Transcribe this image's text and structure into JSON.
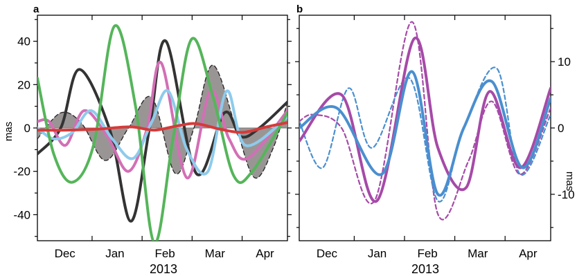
{
  "chart_data": [
    {
      "panel_label": "a",
      "type": "line",
      "ylabel": "mas",
      "xlabel": "2013",
      "ylim": [
        -52,
        52
      ],
      "xlim": [
        0,
        5.35
      ],
      "month_ticks": [
        "Dec",
        "Jan",
        "Feb",
        "Mar",
        "Apr"
      ],
      "yticks": [
        -40,
        -20,
        0,
        20,
        40
      ],
      "grid": false,
      "series": [
        {
          "color": "#333333",
          "style": "solid",
          "x": [
            0,
            0.5,
            0.9,
            1.55,
            2.0,
            2.4,
            2.75,
            3.4,
            4.0,
            4.35,
            4.75,
            5.35
          ],
          "values": [
            -12,
            0,
            27,
            -1,
            -43,
            0,
            40,
            -21,
            7,
            -4,
            0,
            12
          ]
        },
        {
          "color": "#d36fb5",
          "style": "solid",
          "x": [
            0,
            0.25,
            0.6,
            1.0,
            1.5,
            1.95,
            2.35,
            2.65,
            3.2,
            3.7,
            4.1,
            4.5,
            5.35
          ],
          "values": [
            3,
            3,
            -8,
            8,
            -4,
            -20,
            0,
            30,
            -23,
            17,
            -5,
            -14,
            8
          ]
        },
        {
          "color": "#8ecbec",
          "style": "solid",
          "x": [
            0,
            0.35,
            0.75,
            1.15,
            1.6,
            2.05,
            2.45,
            2.8,
            3.2,
            3.65,
            4.05,
            4.45,
            5.35
          ],
          "values": [
            0,
            -5,
            -2,
            8,
            -5,
            -14,
            3,
            17,
            -10,
            -20,
            17,
            -8,
            5
          ]
        },
        {
          "color": "#55b55a",
          "style": "solid",
          "x": [
            0,
            0.35,
            0.75,
            1.2,
            1.65,
            2.1,
            2.5,
            2.9,
            3.3,
            3.75,
            4.2,
            4.6,
            5.35
          ],
          "values": [
            23,
            -12,
            -25,
            -8,
            47,
            10,
            -53,
            -5,
            41,
            15,
            -22,
            -20,
            7
          ]
        },
        {
          "color": "#d63a3a",
          "style": "solid",
          "x": [
            0,
            0.6,
            1.3,
            2.0,
            2.5,
            3.0,
            3.4,
            3.9,
            4.4,
            4.9,
            5.35
          ],
          "values": [
            -1,
            -1,
            -0.5,
            0.5,
            -1,
            1,
            2,
            -0.5,
            -2,
            0.5,
            2.5
          ]
        },
        {
          "color": "#222222",
          "style": "dashed",
          "x": [
            0,
            0.5,
            0.95,
            1.45,
            1.95,
            2.45,
            2.95,
            3.35,
            3.75,
            4.25,
            4.65,
            5.05,
            5.35
          ],
          "values": [
            -5,
            7,
            2,
            -15,
            0,
            14,
            -21,
            0,
            29,
            0,
            -23,
            -9,
            12
          ]
        }
      ]
    },
    {
      "panel_label": "b",
      "type": "line",
      "ylabel": "mas",
      "xlabel": "2013",
      "ylim": [
        -17,
        17
      ],
      "xlim": [
        0,
        5.35
      ],
      "month_ticks": [
        "Dec",
        "Jan",
        "Feb",
        "Mar",
        "Apr"
      ],
      "yticks": [
        -10,
        0,
        10
      ],
      "grid": false,
      "series": [
        {
          "color": "#a64aa8",
          "style": "solid",
          "x": [
            0,
            0.9,
            1.65,
            2.45,
            2.95,
            3.55,
            4.05,
            4.7,
            5.35
          ],
          "values": [
            -2,
            5,
            -11,
            13.5,
            -3,
            -9,
            5.5,
            -6,
            6
          ]
        },
        {
          "color": "#a64aa8",
          "style": "dashed",
          "x": [
            0,
            0.3,
            0.9,
            1.6,
            2.4,
            2.95,
            3.6,
            4.1,
            4.7,
            5.35
          ],
          "values": [
            1,
            2,
            0,
            -11,
            16,
            -13,
            -5,
            4,
            -7,
            3
          ]
        },
        {
          "color": "#4a8fcf",
          "style": "solid",
          "x": [
            0,
            0.8,
            1.75,
            2.4,
            2.95,
            3.5,
            4.1,
            4.75,
            5.35
          ],
          "values": [
            0,
            3,
            -7,
            8.5,
            -10,
            0,
            7,
            -6,
            4.5
          ]
        },
        {
          "color": "#4a8fcf",
          "style": "dashed",
          "x": [
            0,
            0.5,
            1.05,
            1.55,
            2.35,
            2.95,
            3.5,
            4.2,
            4.7,
            5.35
          ],
          "values": [
            1,
            -6,
            6,
            -3,
            7.5,
            -11,
            0,
            9,
            -7,
            2
          ]
        }
      ]
    }
  ]
}
